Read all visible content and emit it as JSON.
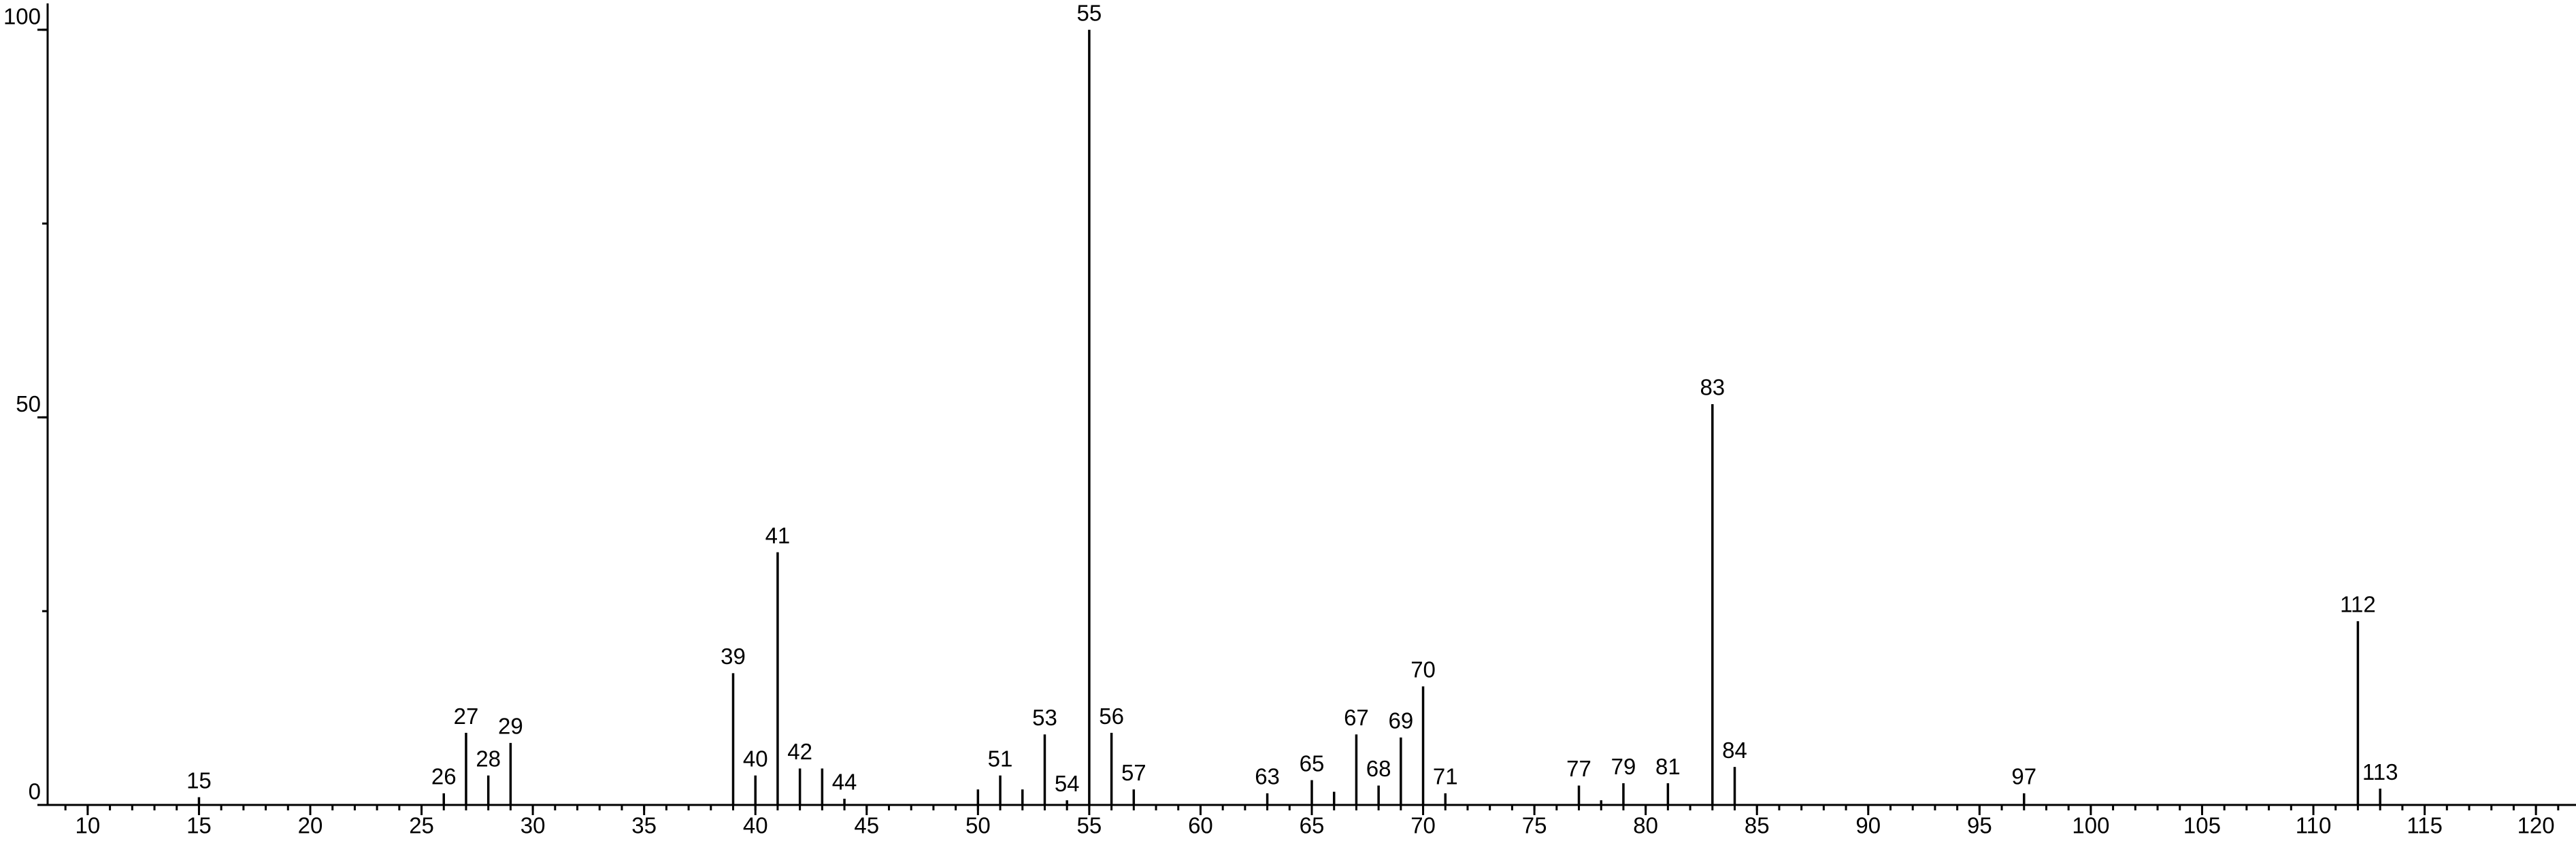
{
  "chart_data": {
    "type": "stem",
    "color": "#000000",
    "x": [
      15,
      26,
      27,
      28,
      29,
      39,
      40,
      41,
      42,
      43,
      44,
      50,
      51,
      52,
      53,
      54,
      55,
      56,
      57,
      63,
      65,
      66,
      67,
      68,
      69,
      70,
      71,
      77,
      78,
      79,
      81,
      83,
      84,
      97,
      112,
      113
    ],
    "values": [
      1,
      1.5,
      9.3,
      3.8,
      8,
      17,
      3.8,
      32.6,
      4.7,
      4.7,
      0.8,
      2,
      3.8,
      2,
      9.1,
      0.6,
      100,
      9.3,
      2,
      1.5,
      3.2,
      1.7,
      9.1,
      2.5,
      8.7,
      15.3,
      1.5,
      2.5,
      0.6,
      2.8,
      2.8,
      51.7,
      4.9,
      1.5,
      23.7,
      2.1
    ],
    "value_labels": [
      "15",
      "26",
      "27",
      "28",
      "29",
      "39",
      "40",
      "41",
      "42",
      null,
      "44",
      null,
      "51",
      null,
      "53",
      "54",
      "55",
      "56",
      "57",
      "63",
      "65",
      null,
      "67",
      "68",
      "69",
      "70",
      "71",
      "77",
      null,
      "79",
      "81",
      "83",
      "84",
      "97",
      "112",
      "113"
    ],
    "xlim": [
      8.2,
      121.8
    ],
    "xticks": [
      10,
      15,
      20,
      25,
      30,
      35,
      40,
      45,
      50,
      55,
      60,
      65,
      70,
      75,
      80,
      85,
      90,
      95,
      100,
      105,
      110,
      115,
      120
    ],
    "x_minor_step": 1,
    "ylim": [
      0,
      103.4
    ],
    "yticks": [
      0,
      50,
      100
    ],
    "y_minor_step": 25
  }
}
